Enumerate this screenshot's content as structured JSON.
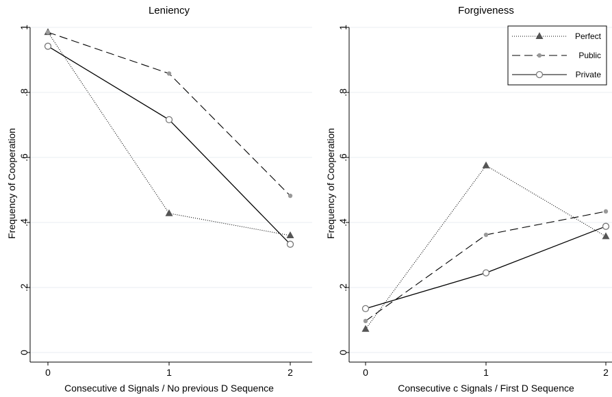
{
  "chart_data": [
    {
      "type": "line",
      "title": "Leniency",
      "xlabel": "Consecutive d Signals / No previous D Sequence",
      "ylabel": "Frequency of Cooperation",
      "x": [
        0,
        1,
        2
      ],
      "xticks": [
        "0",
        "1",
        "2"
      ],
      "yticks": [
        "0",
        ".2",
        ".4",
        ".6",
        ".8",
        "1"
      ],
      "ylim": [
        0,
        1
      ],
      "grid": true,
      "series": [
        {
          "name": "Perfect",
          "style": "dotted",
          "marker": "triangle",
          "color": "#555555",
          "values": [
            0.985,
            0.428,
            0.36
          ]
        },
        {
          "name": "Public",
          "style": "dashed",
          "marker": "dot",
          "color": "#999999",
          "values": [
            0.985,
            0.858,
            0.482
          ]
        },
        {
          "name": "Private",
          "style": "solid",
          "marker": "hollow-circle",
          "color": "#777777",
          "values": [
            0.942,
            0.716,
            0.333
          ]
        }
      ]
    },
    {
      "type": "line",
      "title": "Forgiveness",
      "xlabel": "Consecutive c Signals / First D Sequence",
      "ylabel": "Frequency of Cooperation",
      "x": [
        0,
        1,
        2
      ],
      "xticks": [
        "0",
        "1",
        "2"
      ],
      "yticks": [
        "0",
        ".2",
        ".4",
        ".6",
        ".8",
        "1"
      ],
      "ylim": [
        0,
        1
      ],
      "grid": true,
      "legend": "top-right",
      "series": [
        {
          "name": "Perfect",
          "style": "dotted",
          "marker": "triangle",
          "color": "#555555",
          "values": [
            0.072,
            0.575,
            0.357
          ]
        },
        {
          "name": "Public",
          "style": "dashed",
          "marker": "dot",
          "color": "#999999",
          "values": [
            0.097,
            0.362,
            0.434
          ]
        },
        {
          "name": "Private",
          "style": "solid",
          "marker": "hollow-circle",
          "color": "#777777",
          "values": [
            0.135,
            0.245,
            0.388
          ]
        }
      ]
    }
  ]
}
